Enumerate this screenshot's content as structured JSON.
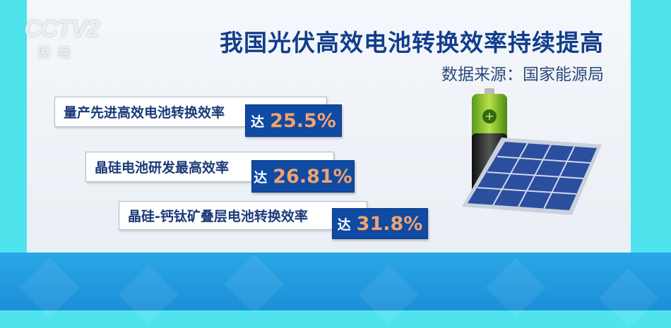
{
  "logo": {
    "text": "CCTV2",
    "sub": "财经"
  },
  "title": "我国光伏高效电池转换效率持续提高",
  "source": "数据来源：国家能源局",
  "items": [
    {
      "label": "量产先进高效电池转换效率",
      "prefix": "达",
      "value": "25.5%"
    },
    {
      "label": "晶硅电池研发最高效率",
      "prefix": "达",
      "value": "26.81%"
    },
    {
      "label": "晶硅-钙钛矿叠层电池转换效率",
      "prefix": "达",
      "value": "31.8%"
    }
  ],
  "colors": {
    "title": "#123d8c",
    "badge": "#0f4aa3",
    "value": "#f0a36f",
    "frame": "#4fe3ee",
    "band": "#1b8fd8"
  },
  "icons": [
    "battery-icon",
    "solar-panel-icon"
  ]
}
